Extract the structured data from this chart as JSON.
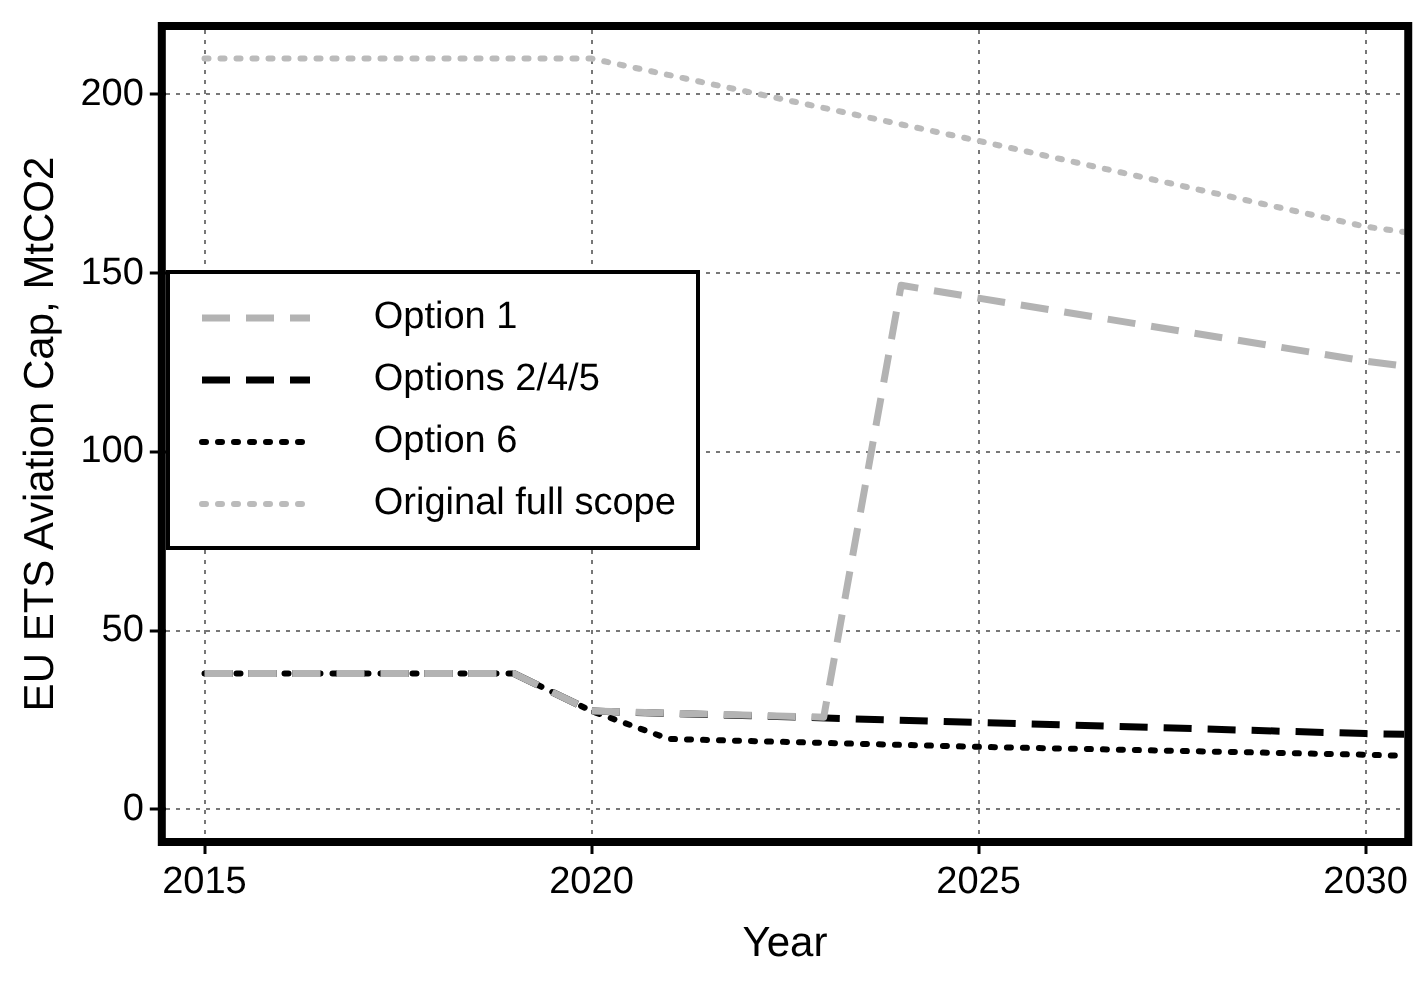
{
  "chart_data": {
    "type": "line",
    "xlabel": "Year",
    "ylabel": "EU ETS Aviation Cap, MtCO2",
    "xlim": [
      2014.5,
      2030.5
    ],
    "ylim": [
      -8,
      218
    ],
    "xticks": [
      2015,
      2020,
      2025,
      2030
    ],
    "yticks": [
      0,
      50,
      100,
      150,
      200
    ],
    "grid": true,
    "legend": "left",
    "marker": "none",
    "series": [
      {
        "name": "Option 1",
        "color": "#b3b3b3",
        "line_style": "dashed",
        "x": [
          2015,
          2019,
          2020,
          2023,
          2024,
          2025,
          2030,
          2030.5
        ],
        "values": [
          38,
          38,
          27.5,
          25.8,
          146.6,
          143,
          125.4,
          124
        ]
      },
      {
        "name": "Options 2/4/5",
        "color": "#000000",
        "line_style": "dashed",
        "x": [
          2015,
          2019,
          2020,
          2025,
          2030,
          2030.5
        ],
        "values": [
          38,
          38,
          27.5,
          24.3,
          21.2,
          21
        ]
      },
      {
        "name": "Option 6",
        "color": "#000000",
        "line_style": "dotted",
        "x": [
          2015,
          2019,
          2020,
          2021,
          2025,
          2030,
          2030.5
        ],
        "values": [
          38,
          38,
          27.5,
          19.7,
          17.5,
          15.3,
          15
        ]
      },
      {
        "name": "Original full scope",
        "color": "#bbbbbb",
        "line_style": "dotted",
        "x": [
          2015,
          2020,
          2025,
          2030,
          2030.5
        ],
        "values": [
          210,
          210,
          187,
          163,
          161.5
        ]
      }
    ]
  }
}
